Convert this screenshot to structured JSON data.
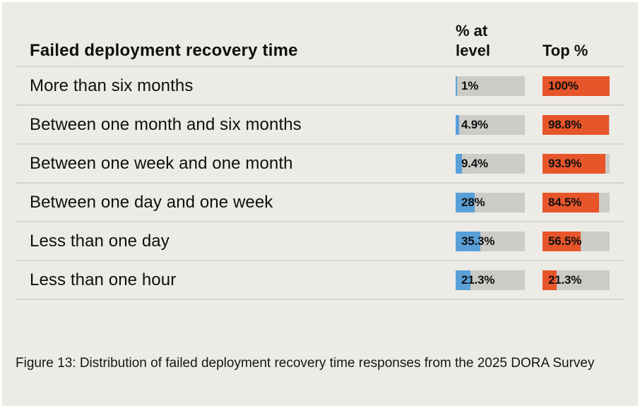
{
  "header": {
    "title": "Failed deployment recovery time",
    "col_at_level": "% at level",
    "col_top": "Top %"
  },
  "caption": "Figure 13: Distribution of failed deployment recovery time responses from the 2025 DORA Survey",
  "colors": {
    "card_background": "#edebe5",
    "track": "#cccbc7",
    "at_level_fill": "#5aa0d8",
    "top_fill": "#e7552a",
    "separator": "#d7d6d2",
    "text": "#0f0f0f"
  },
  "chart_data": {
    "type": "bar",
    "title": "Failed deployment recovery time",
    "orientation": "horizontal",
    "xlim": [
      0,
      100
    ],
    "track_color": "#cccbc7",
    "categories": [
      "More than six months",
      "Between one month and six months",
      "Between one week and one month",
      "Between one day and one week",
      "Less than one day",
      "Less than one hour"
    ],
    "series": [
      {
        "name": "% at level",
        "color": "#5aa0d8",
        "values": [
          1,
          4.9,
          9.4,
          28,
          35.3,
          21.3
        ],
        "labels": [
          "1%",
          "4.9%",
          "9.4%",
          "28%",
          "35.3%",
          "21.3%"
        ]
      },
      {
        "name": "Top %",
        "color": "#e7552a",
        "values": [
          100,
          98.8,
          93.9,
          84.5,
          56.5,
          21.3
        ],
        "labels": [
          "100%",
          "98.8%",
          "93.9%",
          "84.5%",
          "56.5%",
          "21.3%"
        ]
      }
    ]
  }
}
